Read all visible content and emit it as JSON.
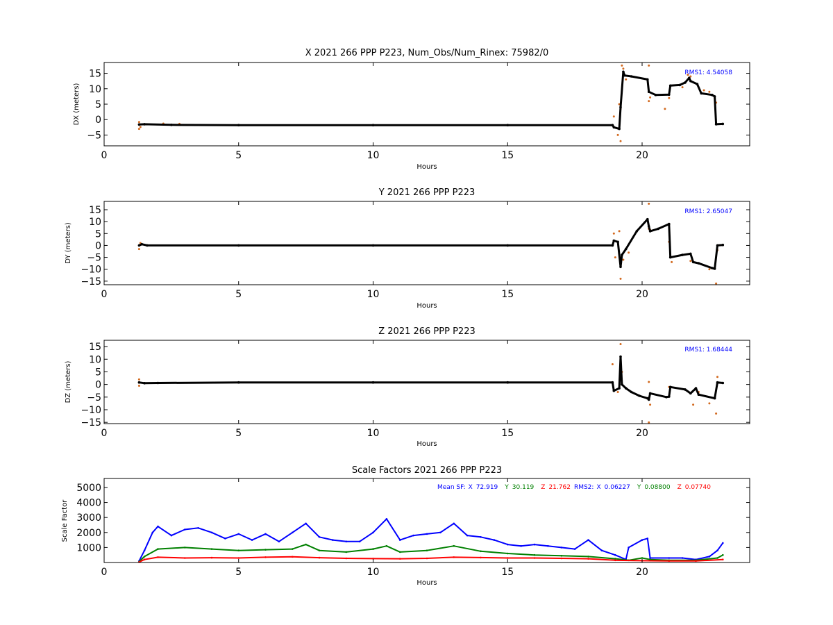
{
  "colors": {
    "fit": "#000000",
    "raw": "#d2691e",
    "sf_x": "#0000ff",
    "sf_y": "#008000",
    "sf_z": "#ff0000",
    "rms_text": "#0000ff"
  },
  "chart_data": [
    {
      "type": "scatter",
      "title": "X 2021 266 PPP  P223, Num_Obs/Num_Rinex: 75982/0",
      "xlabel": "Hours",
      "ylabel": "DX (meters)",
      "xlim": [
        0,
        24
      ],
      "ylim": [
        -8.5,
        18.5
      ],
      "xticks": [
        0,
        5,
        10,
        15,
        20
      ],
      "yticks": [
        -5,
        0,
        5,
        10,
        15
      ],
      "annotation": "RMS1:  4.54058",
      "series": [
        {
          "role": "fit",
          "x": [
            1.3,
            1.5,
            2.5,
            5.0,
            10.0,
            15.0,
            18.9,
            18.95,
            19.15,
            19.2,
            19.3,
            19.35,
            19.6,
            20.2,
            20.25,
            20.5,
            21.0,
            21.05,
            21.4,
            21.6,
            21.75,
            21.8,
            22.05,
            22.2,
            22.6,
            22.7,
            22.75,
            23.0
          ],
          "y": [
            -1.6,
            -1.5,
            -1.7,
            -1.8,
            -1.8,
            -1.8,
            -1.8,
            -2.5,
            -3.0,
            4.0,
            15.5,
            14.3,
            14.0,
            13.0,
            9.0,
            8.0,
            8.1,
            11.0,
            11.2,
            12.0,
            13.5,
            12.5,
            11.5,
            8.5,
            8.0,
            7.5,
            -1.5,
            -1.4
          ]
        },
        {
          "role": "raw",
          "x": [
            1.3,
            1.3,
            1.35,
            2.2,
            2.8,
            18.95,
            19.1,
            19.15,
            19.2,
            19.2,
            19.25,
            19.3,
            19.4,
            20.25,
            20.25,
            20.3,
            20.85,
            21.0,
            21.5,
            21.7,
            21.8,
            22.3,
            22.5,
            22.7,
            22.75
          ],
          "y": [
            -3.0,
            -0.8,
            -2.4,
            -1.3,
            -1.4,
            1.0,
            -5.0,
            5.0,
            -7.0,
            3.5,
            17.5,
            16.5,
            13.0,
            17.5,
            6.0,
            7.2,
            3.5,
            7.0,
            10.5,
            14.5,
            14.0,
            9.5,
            9.0,
            7.0,
            5.5
          ]
        }
      ]
    },
    {
      "type": "scatter",
      "title": "Y 2021 266 PPP  P223",
      "xlabel": "Hours",
      "ylabel": "DY (meters)",
      "xlim": [
        0,
        24
      ],
      "ylim": [
        -16.5,
        18.5
      ],
      "xticks": [
        0,
        5,
        10,
        15,
        20
      ],
      "yticks": [
        -15,
        -10,
        -5,
        0,
        5,
        10,
        15
      ],
      "annotation": "RMS1:  2.65047",
      "series": [
        {
          "role": "fit",
          "x": [
            1.3,
            1.4,
            1.6,
            5.0,
            10.0,
            15.0,
            18.9,
            18.95,
            19.1,
            19.2,
            19.25,
            19.4,
            19.8,
            20.2,
            20.25,
            20.3,
            20.6,
            21.0,
            21.05,
            21.5,
            21.8,
            21.9,
            22.1,
            22.6,
            22.7,
            22.8,
            23.0
          ],
          "y": [
            0.0,
            0.5,
            0.0,
            0.0,
            0.0,
            0.0,
            0.0,
            2.0,
            1.5,
            -9.0,
            -4.0,
            -1.5,
            6.0,
            11.0,
            8.0,
            6.0,
            7.0,
            9.0,
            -5.0,
            -4.0,
            -3.5,
            -7.0,
            -7.5,
            -9.5,
            -9.8,
            0.0,
            0.2
          ]
        },
        {
          "role": "raw",
          "x": [
            1.3,
            1.35,
            18.95,
            19.0,
            19.15,
            19.2,
            19.3,
            19.5,
            20.25,
            20.25,
            20.3,
            21.0,
            21.1,
            21.8,
            22.5,
            22.75,
            22.8
          ],
          "y": [
            -1.5,
            1.0,
            5.0,
            -5.0,
            6.0,
            -14.0,
            -6.0,
            -3.0,
            17.5,
            7.0,
            6.5,
            1.5,
            -7.0,
            -6.5,
            -10.0,
            -16.0,
            -2.0
          ]
        }
      ]
    },
    {
      "type": "scatter",
      "title": "Z 2021 266 PPP  P223",
      "xlabel": "Hours",
      "ylabel": "DZ (meters)",
      "xlim": [
        0,
        24
      ],
      "ylim": [
        -15.5,
        17.5
      ],
      "xticks": [
        0,
        5,
        10,
        15,
        20
      ],
      "yticks": [
        -15,
        -10,
        -5,
        0,
        5,
        10,
        15
      ],
      "annotation": "RMS1:  1.68444",
      "series": [
        {
          "role": "fit",
          "x": [
            1.3,
            1.5,
            2.0,
            5.0,
            10.0,
            15.0,
            18.9,
            18.95,
            19.15,
            19.2,
            19.25,
            19.4,
            19.6,
            19.9,
            20.2,
            20.25,
            20.3,
            20.9,
            21.0,
            21.05,
            21.6,
            21.8,
            22.0,
            22.1,
            22.7,
            22.8,
            23.0
          ],
          "y": [
            0.8,
            0.5,
            0.6,
            0.8,
            0.8,
            0.8,
            0.8,
            -2.5,
            -1.5,
            11.0,
            0.0,
            -1.5,
            -3.0,
            -4.5,
            -5.5,
            -6.0,
            -3.5,
            -5.0,
            -4.8,
            -1.0,
            -2.0,
            -3.5,
            -1.5,
            -4.0,
            -5.5,
            0.8,
            0.6
          ]
        },
        {
          "role": "raw",
          "x": [
            1.3,
            1.3,
            18.9,
            19.1,
            19.2,
            19.25,
            20.25,
            20.25,
            20.3,
            21.0,
            21.9,
            22.1,
            22.5,
            22.75,
            22.8
          ],
          "y": [
            2.0,
            -0.5,
            8.0,
            -3.0,
            16.0,
            5.0,
            1.0,
            -15.0,
            -8.0,
            -1.0,
            -8.0,
            -3.0,
            -7.5,
            -11.5,
            3.0
          ]
        }
      ]
    },
    {
      "type": "scatter",
      "title": "Scale Factors 2021 266 PPP  P223",
      "xlabel": "Hours",
      "ylabel": "Scale Factor",
      "xlim": [
        0,
        24
      ],
      "ylim": [
        0,
        5600
      ],
      "xticks": [
        0,
        5,
        10,
        15,
        20
      ],
      "yticks": [
        1000,
        2000,
        3000,
        4000,
        5000
      ],
      "legend": {
        "mean_label": "Mean SF:",
        "x_label": "X",
        "x_mean": "72.919",
        "y_label": "Y",
        "y_mean": "30.119",
        "z_label": "Z",
        "z_mean": "21.762",
        "rms2_label": "RMS2:",
        "x_rms2": "0.06227",
        "y_rms2": "0.08800",
        "z_rms2": "0.07740"
      },
      "series": [
        {
          "role": "sf_x",
          "x": [
            1.3,
            1.5,
            1.8,
            2.0,
            2.5,
            3.0,
            3.5,
            4.0,
            4.5,
            5.0,
            5.5,
            6.0,
            6.5,
            7.0,
            7.5,
            8.0,
            8.5,
            9.0,
            9.5,
            10.0,
            10.5,
            11.0,
            11.5,
            12.0,
            12.5,
            13.0,
            13.5,
            14.0,
            14.5,
            15.0,
            15.5,
            16.0,
            16.5,
            17.0,
            17.5,
            18.0,
            18.5,
            19.0,
            19.4,
            19.5,
            20.0,
            20.2,
            20.3,
            21.0,
            21.5,
            22.0,
            22.5,
            22.8,
            23.0
          ],
          "y": [
            100,
            800,
            2000,
            2400,
            1800,
            2200,
            2300,
            2000,
            1600,
            1900,
            1500,
            1900,
            1400,
            2000,
            2600,
            1700,
            1500,
            1400,
            1400,
            2000,
            2900,
            1500,
            1800,
            1900,
            2000,
            2600,
            1800,
            1700,
            1500,
            1200,
            1100,
            1200,
            1100,
            1000,
            900,
            1500,
            800,
            500,
            200,
            1000,
            1500,
            1600,
            300,
            300,
            300,
            200,
            400,
            800,
            1300
          ]
        },
        {
          "role": "sf_y",
          "x": [
            1.3,
            1.5,
            2.0,
            3.0,
            4.0,
            5.0,
            6.0,
            7.0,
            7.5,
            8.0,
            9.0,
            10.0,
            10.5,
            11.0,
            12.0,
            13.0,
            14.0,
            15.0,
            16.0,
            17.0,
            18.0,
            19.0,
            19.5,
            20.0,
            20.3,
            21.0,
            22.0,
            22.8,
            23.0
          ],
          "y": [
            50,
            400,
            900,
            1000,
            900,
            800,
            850,
            900,
            1200,
            800,
            700,
            900,
            1100,
            700,
            800,
            1100,
            750,
            600,
            500,
            450,
            400,
            250,
            150,
            300,
            200,
            150,
            150,
            300,
            500
          ]
        },
        {
          "role": "sf_z",
          "x": [
            1.3,
            1.5,
            2.0,
            3.0,
            4.0,
            5.0,
            6.0,
            7.0,
            8.0,
            9.0,
            10.0,
            11.0,
            12.0,
            13.0,
            14.0,
            15.0,
            16.0,
            17.0,
            18.0,
            19.0,
            20.0,
            21.0,
            22.0,
            23.0
          ],
          "y": [
            30,
            200,
            350,
            300,
            320,
            300,
            350,
            380,
            320,
            280,
            260,
            250,
            280,
            350,
            330,
            300,
            300,
            280,
            250,
            150,
            120,
            100,
            100,
            200
          ]
        }
      ]
    }
  ]
}
